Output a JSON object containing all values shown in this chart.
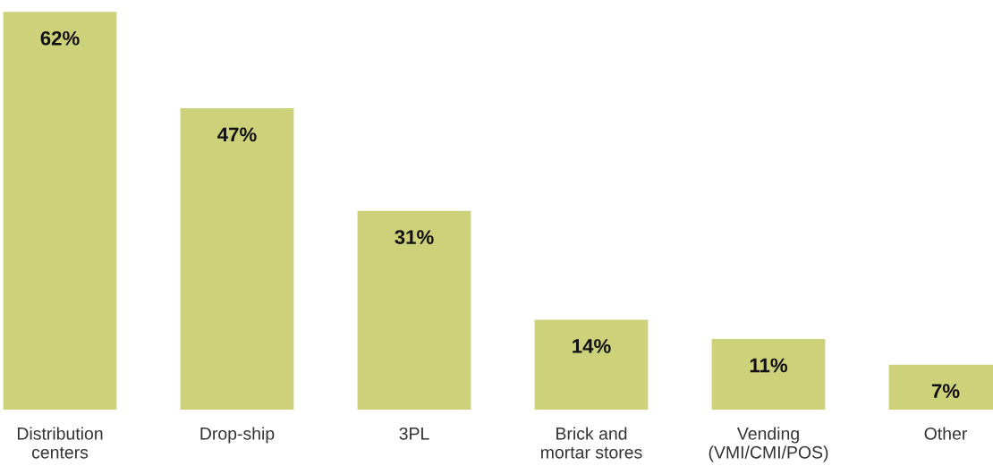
{
  "chart_data": {
    "type": "bar",
    "categories": [
      "Distribution\ncenters",
      "Drop-ship",
      "3PL",
      "Brick and\nmortar stores",
      "Vending\n(VMI/CMI/POS)",
      "Other"
    ],
    "values": [
      62,
      47,
      31,
      14,
      11,
      7
    ],
    "value_labels": [
      "62%",
      "47%",
      "31%",
      "14%",
      "11%",
      "7%"
    ],
    "color": "#cdd17a",
    "tick_labels": "x"
  }
}
